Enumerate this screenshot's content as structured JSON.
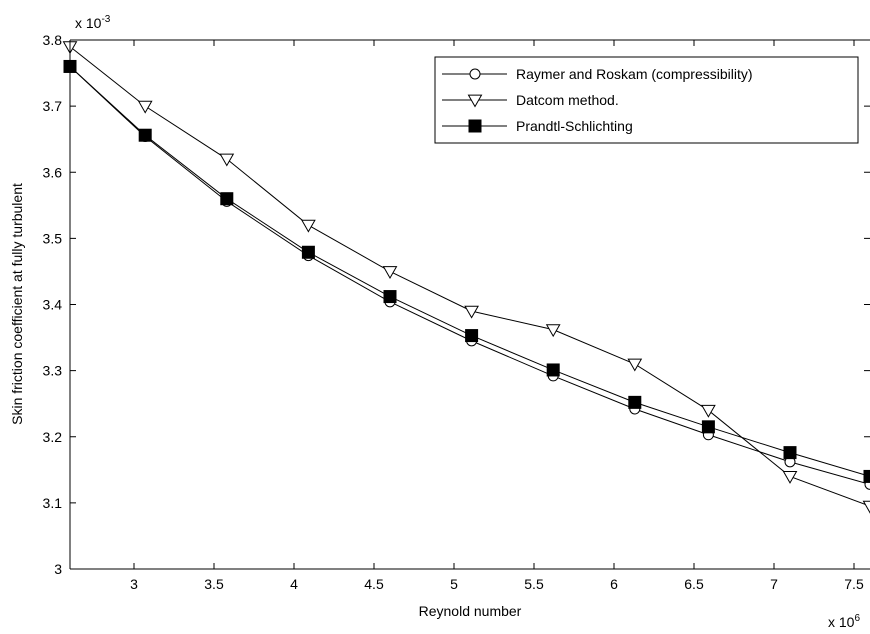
{
  "chart_data": {
    "type": "line",
    "xlabel": "Reynold number",
    "ylabel": "Skin friction coefficient at fully turbulent",
    "x_exponent_label": "x 10",
    "x_exponent": "6",
    "y_exponent_label": "x 10",
    "y_exponent": "-3",
    "xlim": [
      2.6,
      7.6
    ],
    "ylim": [
      3.0,
      3.8
    ],
    "x_ticks": [
      3,
      3.5,
      4,
      4.5,
      5,
      5.5,
      6,
      6.5,
      7,
      7.5
    ],
    "x_tick_labels": [
      "3",
      "3.5",
      "4",
      "4.5",
      "5",
      "5.5",
      "6",
      "6.5",
      "7",
      "7.5"
    ],
    "y_ticks": [
      3.0,
      3.1,
      3.2,
      3.3,
      3.4,
      3.5,
      3.6,
      3.7,
      3.8
    ],
    "y_tick_labels": [
      "3",
      "3.1",
      "3.2",
      "3.3",
      "3.4",
      "3.5",
      "3.6",
      "3.7",
      "3.8"
    ],
    "grid": false,
    "legend_position": "top-right",
    "x": [
      2.6,
      3.07,
      3.58,
      4.09,
      4.6,
      5.11,
      5.62,
      6.13,
      6.59,
      7.1,
      7.6
    ],
    "series": [
      {
        "name": "Raymer and Roskam (compressibility)",
        "marker": "circle",
        "values": [
          3.76,
          3.654,
          3.556,
          3.474,
          3.404,
          3.345,
          3.292,
          3.242,
          3.203,
          3.162,
          3.128
        ]
      },
      {
        "name": "Datcom method.",
        "marker": "triangle-down",
        "values": [
          3.79,
          3.7,
          3.62,
          3.52,
          3.45,
          3.39,
          3.362,
          3.31,
          3.24,
          3.14,
          3.095
        ]
      },
      {
        "name": "Prandtl-Schlichting",
        "marker": "square-filled",
        "values": [
          3.76,
          3.656,
          3.56,
          3.479,
          3.412,
          3.353,
          3.301,
          3.252,
          3.215,
          3.176,
          3.14
        ]
      }
    ]
  }
}
